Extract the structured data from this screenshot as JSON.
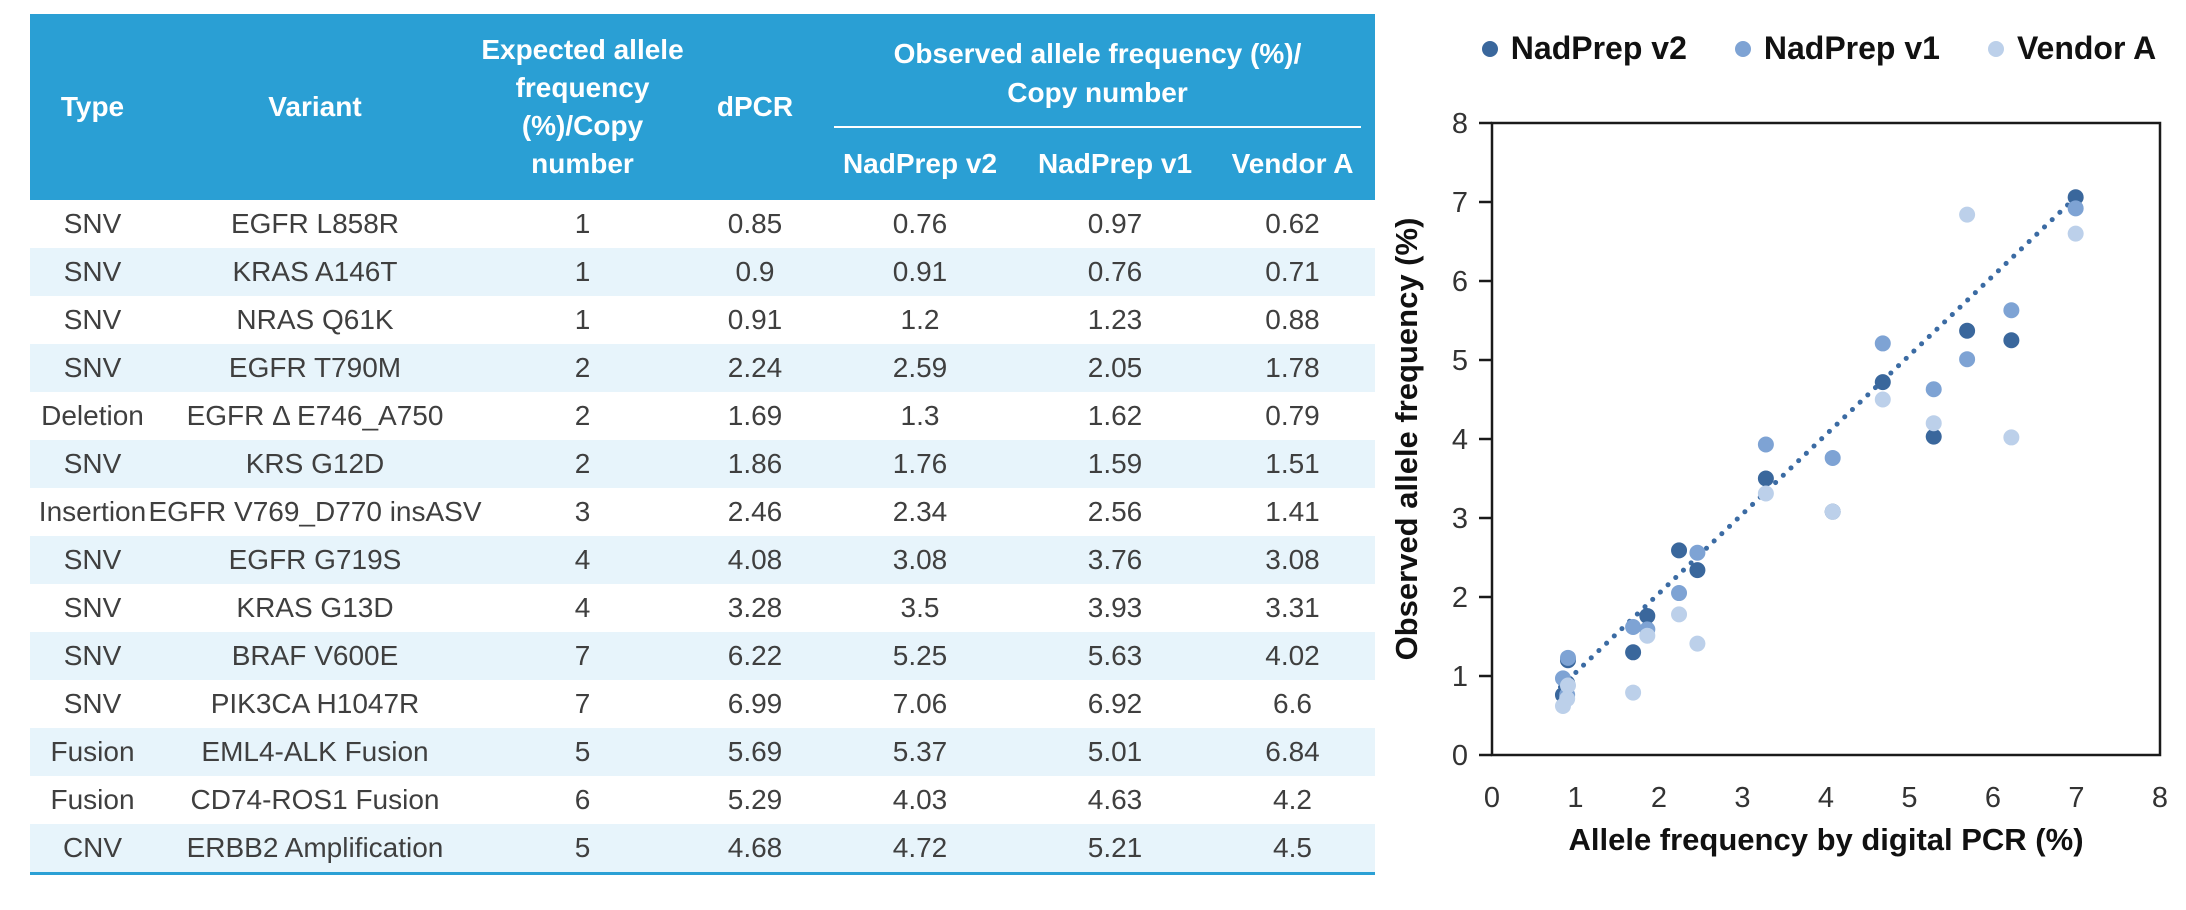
{
  "table": {
    "header": {
      "type": "Type",
      "variant": "Variant",
      "expected_lines": [
        "Expected allele",
        "frequency",
        "(%)/Copy",
        "number"
      ],
      "dpcr": "dPCR",
      "observed_group_line1": "Observed allele frequency (%)/",
      "observed_group_line2": "Copy number",
      "sub": [
        "NadPrep v2",
        "NadPrep v1",
        "Vendor A"
      ]
    },
    "rows": [
      {
        "type": "SNV",
        "variant": "EGFR L858R",
        "expected": "1",
        "dpcr": "0.85",
        "v2": "0.76",
        "v1": "0.97",
        "vendor_a": "0.62"
      },
      {
        "type": "SNV",
        "variant": "KRAS A146T",
        "expected": "1",
        "dpcr": "0.9",
        "v2": "0.91",
        "v1": "0.76",
        "vendor_a": "0.71"
      },
      {
        "type": "SNV",
        "variant": "NRAS Q61K",
        "expected": "1",
        "dpcr": "0.91",
        "v2": "1.2",
        "v1": "1.23",
        "vendor_a": "0.88"
      },
      {
        "type": "SNV",
        "variant": "EGFR T790M",
        "expected": "2",
        "dpcr": "2.24",
        "v2": "2.59",
        "v1": "2.05",
        "vendor_a": "1.78"
      },
      {
        "type": "Deletion",
        "variant": "EGFR Δ E746_A750",
        "expected": "2",
        "dpcr": "1.69",
        "v2": "1.3",
        "v1": "1.62",
        "vendor_a": "0.79"
      },
      {
        "type": "SNV",
        "variant": "KRS G12D",
        "expected": "2",
        "dpcr": "1.86",
        "v2": "1.76",
        "v1": "1.59",
        "vendor_a": "1.51"
      },
      {
        "type": "Insertion",
        "variant": "EGFR V769_D770 insASV",
        "expected": "3",
        "dpcr": "2.46",
        "v2": "2.34",
        "v1": "2.56",
        "vendor_a": "1.41"
      },
      {
        "type": "SNV",
        "variant": "EGFR G719S",
        "expected": "4",
        "dpcr": "4.08",
        "v2": "3.08",
        "v1": "3.76",
        "vendor_a": "3.08"
      },
      {
        "type": "SNV",
        "variant": "KRAS G13D",
        "expected": "4",
        "dpcr": "3.28",
        "v2": "3.5",
        "v1": "3.93",
        "vendor_a": "3.31"
      },
      {
        "type": "SNV",
        "variant": "BRAF V600E",
        "expected": "7",
        "dpcr": "6.22",
        "v2": "5.25",
        "v1": "5.63",
        "vendor_a": "4.02"
      },
      {
        "type": "SNV",
        "variant": "PIK3CA H1047R",
        "expected": "7",
        "dpcr": "6.99",
        "v2": "7.06",
        "v1": "6.92",
        "vendor_a": "6.6"
      },
      {
        "type": "Fusion",
        "variant": "EML4-ALK Fusion",
        "expected": "5",
        "dpcr": "5.69",
        "v2": "5.37",
        "v1": "5.01",
        "vendor_a": "6.84"
      },
      {
        "type": "Fusion",
        "variant": "CD74-ROS1 Fusion",
        "expected": "6",
        "dpcr": "5.29",
        "v2": "4.03",
        "v1": "4.63",
        "vendor_a": "4.2"
      },
      {
        "type": "CNV",
        "variant": "ERBB2 Amplification",
        "expected": "5",
        "dpcr": "4.68",
        "v2": "4.72",
        "v1": "5.21",
        "vendor_a": "4.5"
      }
    ]
  },
  "chart_data": {
    "type": "scatter",
    "x": [
      0.85,
      0.9,
      0.91,
      2.24,
      1.69,
      1.86,
      2.46,
      4.08,
      3.28,
      6.22,
      6.99,
      5.69,
      5.29,
      4.68
    ],
    "series": [
      {
        "name": "NadPrep v2",
        "color": "#3A679C",
        "values": [
          0.76,
          0.91,
          1.2,
          2.59,
          1.3,
          1.76,
          2.34,
          3.08,
          3.5,
          5.25,
          7.06,
          5.37,
          4.03,
          4.72
        ]
      },
      {
        "name": "NadPrep v1",
        "color": "#7EA3D4",
        "values": [
          0.97,
          0.76,
          1.23,
          2.05,
          1.62,
          1.59,
          2.56,
          3.76,
          3.93,
          5.63,
          6.92,
          5.01,
          4.63,
          5.21
        ]
      },
      {
        "name": "Vendor A",
        "color": "#BCD0EA",
        "values": [
          0.62,
          0.71,
          0.88,
          1.78,
          0.79,
          1.51,
          1.41,
          3.08,
          3.31,
          4.02,
          6.6,
          6.84,
          4.2,
          4.5
        ]
      }
    ],
    "trendline": {
      "x1": 0.82,
      "y1": 0.86,
      "x2": 7.05,
      "y2": 7.12,
      "color": "#3B6BA3",
      "style": "dotted"
    },
    "xlabel": "Allele frequency by digital PCR (%)",
    "ylabel": "Observed allele frequency (%)",
    "xlim": [
      0,
      8
    ],
    "ylim": [
      0,
      8
    ],
    "xticks": [
      0,
      1,
      2,
      3,
      4,
      5,
      6,
      7,
      8
    ],
    "yticks": [
      0,
      1,
      2,
      3,
      4,
      5,
      6,
      7,
      8
    ],
    "grid": false,
    "legend_position": "top"
  },
  "colors": {
    "table_header_bg": "#2A9FD4",
    "table_row_alt": "#E7F4FB",
    "table_bottom_rule": "#2BA0D5",
    "header_text": "#FFFFFF",
    "body_text": "#3F3F3F"
  }
}
